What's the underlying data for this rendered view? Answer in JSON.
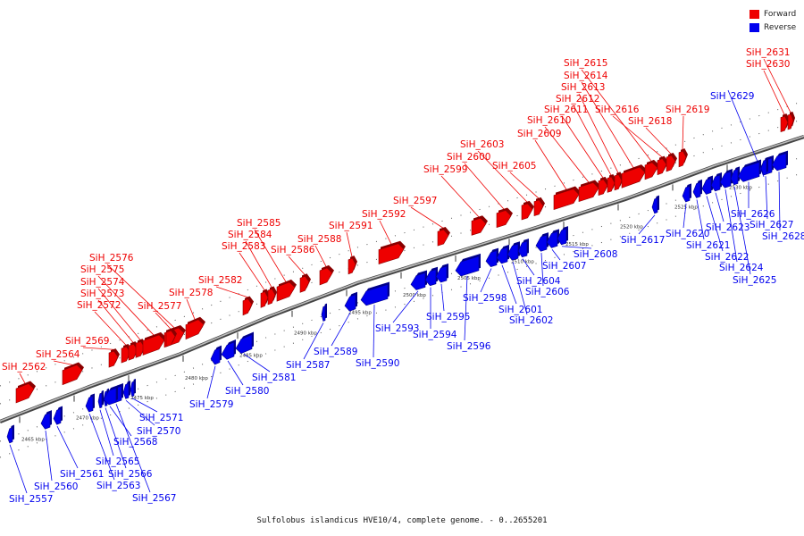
{
  "title": "Sulfolobus islandicus HVE10/4, complete genome. - 0..2655201",
  "legend": {
    "forward": {
      "label": "Forward",
      "color": "#ee0000"
    },
    "reverse": {
      "label": "Reverse",
      "color": "#0000ee"
    }
  },
  "axis": {
    "ticks": [
      "2465 kbp",
      "2470 kbp",
      "2475 kbp",
      "2480 kbp",
      "2485 kbp",
      "2490 kbp",
      "2495 kbp",
      "2500 kbp",
      "2505 kbp",
      "2510 kbp",
      "2515 kbp",
      "2520 kbp",
      "2525 kbp",
      "2530 kbp"
    ]
  },
  "genes": [
    {
      "name": "SiH_2557",
      "strand": "reverse"
    },
    {
      "name": "SiH_2560",
      "strand": "reverse"
    },
    {
      "name": "SiH_2561",
      "strand": "reverse"
    },
    {
      "name": "SiH_2562",
      "strand": "forward"
    },
    {
      "name": "SiH_2563",
      "strand": "reverse"
    },
    {
      "name": "SiH_2564",
      "strand": "forward"
    },
    {
      "name": "SiH_2565",
      "strand": "reverse"
    },
    {
      "name": "SiH_2566",
      "strand": "reverse"
    },
    {
      "name": "SiH_2567",
      "strand": "reverse"
    },
    {
      "name": "SiH_2568",
      "strand": "reverse"
    },
    {
      "name": "SiH_2569",
      "strand": "forward"
    },
    {
      "name": "SiH_2570",
      "strand": "reverse"
    },
    {
      "name": "SiH_2571",
      "strand": "reverse"
    },
    {
      "name": "SiH_2572",
      "strand": "forward"
    },
    {
      "name": "SiH_2573",
      "strand": "forward"
    },
    {
      "name": "SiH_2574",
      "strand": "forward"
    },
    {
      "name": "SiH_2575",
      "strand": "forward"
    },
    {
      "name": "SiH_2576",
      "strand": "forward"
    },
    {
      "name": "SiH_2577",
      "strand": "forward"
    },
    {
      "name": "SiH_2578",
      "strand": "forward"
    },
    {
      "name": "SiH_2579",
      "strand": "reverse"
    },
    {
      "name": "SiH_2580",
      "strand": "reverse"
    },
    {
      "name": "SiH_2581",
      "strand": "reverse"
    },
    {
      "name": "SiH_2582",
      "strand": "forward"
    },
    {
      "name": "SiH_2583",
      "strand": "forward"
    },
    {
      "name": "SiH_2584",
      "strand": "forward"
    },
    {
      "name": "SiH_2585",
      "strand": "forward"
    },
    {
      "name": "SiH_2586",
      "strand": "forward"
    },
    {
      "name": "SiH_2587",
      "strand": "reverse"
    },
    {
      "name": "SiH_2588",
      "strand": "forward"
    },
    {
      "name": "SiH_2589",
      "strand": "reverse"
    },
    {
      "name": "SiH_2590",
      "strand": "reverse"
    },
    {
      "name": "SiH_2591",
      "strand": "forward"
    },
    {
      "name": "SiH_2592",
      "strand": "forward"
    },
    {
      "name": "SiH_2593",
      "strand": "reverse"
    },
    {
      "name": "SiH_2594",
      "strand": "reverse"
    },
    {
      "name": "SiH_2595",
      "strand": "reverse"
    },
    {
      "name": "SiH_2596",
      "strand": "reverse"
    },
    {
      "name": "SiH_2597",
      "strand": "forward"
    },
    {
      "name": "SiH_2598",
      "strand": "reverse"
    },
    {
      "name": "SiH_2599",
      "strand": "forward"
    },
    {
      "name": "SiH_2600",
      "strand": "forward"
    },
    {
      "name": "SiH_2601",
      "strand": "reverse"
    },
    {
      "name": "SiH_2602",
      "strand": "reverse"
    },
    {
      "name": "SiH_2603",
      "strand": "forward"
    },
    {
      "name": "SiH_2604",
      "strand": "reverse"
    },
    {
      "name": "SiH_2605",
      "strand": "forward"
    },
    {
      "name": "SiH_2606",
      "strand": "reverse"
    },
    {
      "name": "SiH_2607",
      "strand": "reverse"
    },
    {
      "name": "SiH_2608",
      "strand": "reverse"
    },
    {
      "name": "SiH_2609",
      "strand": "forward"
    },
    {
      "name": "SiH_2610",
      "strand": "forward"
    },
    {
      "name": "SiH_2611",
      "strand": "forward"
    },
    {
      "name": "SiH_2612",
      "strand": "forward"
    },
    {
      "name": "SiH_2613",
      "strand": "forward"
    },
    {
      "name": "SiH_2614",
      "strand": "forward"
    },
    {
      "name": "SiH_2615",
      "strand": "forward"
    },
    {
      "name": "SiH_2616",
      "strand": "forward"
    },
    {
      "name": "SiH_2617",
      "strand": "reverse"
    },
    {
      "name": "SiH_2618",
      "strand": "forward"
    },
    {
      "name": "SiH_2619",
      "strand": "forward"
    },
    {
      "name": "SiH_2620",
      "strand": "reverse"
    },
    {
      "name": "SiH_2621",
      "strand": "reverse"
    },
    {
      "name": "SiH_2622",
      "strand": "reverse"
    },
    {
      "name": "SiH_2623",
      "strand": "reverse"
    },
    {
      "name": "SiH_2624",
      "strand": "reverse"
    },
    {
      "name": "SiH_2625",
      "strand": "reverse"
    },
    {
      "name": "SiH_2626",
      "strand": "reverse"
    },
    {
      "name": "SiH_2627",
      "strand": "reverse"
    },
    {
      "name": "SiH_2628",
      "strand": "reverse"
    },
    {
      "name": "SiH_2629",
      "strand": "reverse"
    },
    {
      "name": "SiH_2630",
      "strand": "forward"
    },
    {
      "name": "SiH_2631",
      "strand": "forward"
    }
  ]
}
